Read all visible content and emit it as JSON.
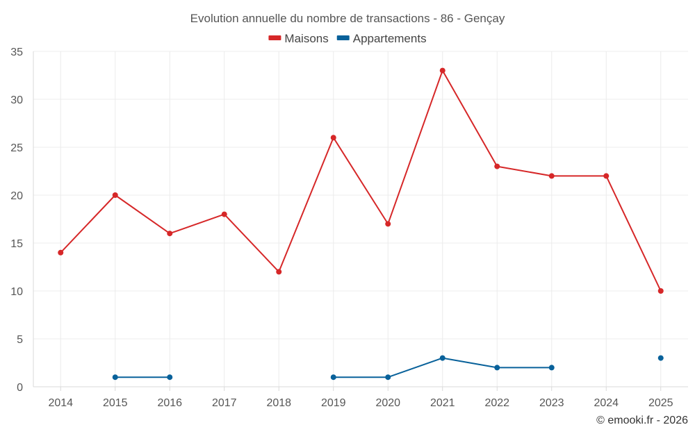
{
  "chart_data": {
    "type": "line",
    "title": "Evolution annuelle du nombre de transactions - 86 - Gençay",
    "categories": [
      "2014",
      "2015",
      "2016",
      "2017",
      "2018",
      "2019",
      "2020",
      "2021",
      "2022",
      "2023",
      "2024",
      "2025"
    ],
    "ylim": [
      0,
      35
    ],
    "yticks": [
      0,
      5,
      10,
      15,
      20,
      25,
      30,
      35
    ],
    "grid": true,
    "legend_position": "top-center",
    "series": [
      {
        "name": "Maisons",
        "color": "#d62728",
        "values": [
          14,
          20,
          16,
          18,
          12,
          26,
          17,
          33,
          23,
          22,
          22,
          10
        ]
      },
      {
        "name": "Appartements",
        "color": "#08619a",
        "values": [
          null,
          1,
          1,
          null,
          null,
          1,
          1,
          3,
          2,
          2,
          null,
          3
        ]
      }
    ]
  },
  "credit": "© emooki.fr - 2026"
}
